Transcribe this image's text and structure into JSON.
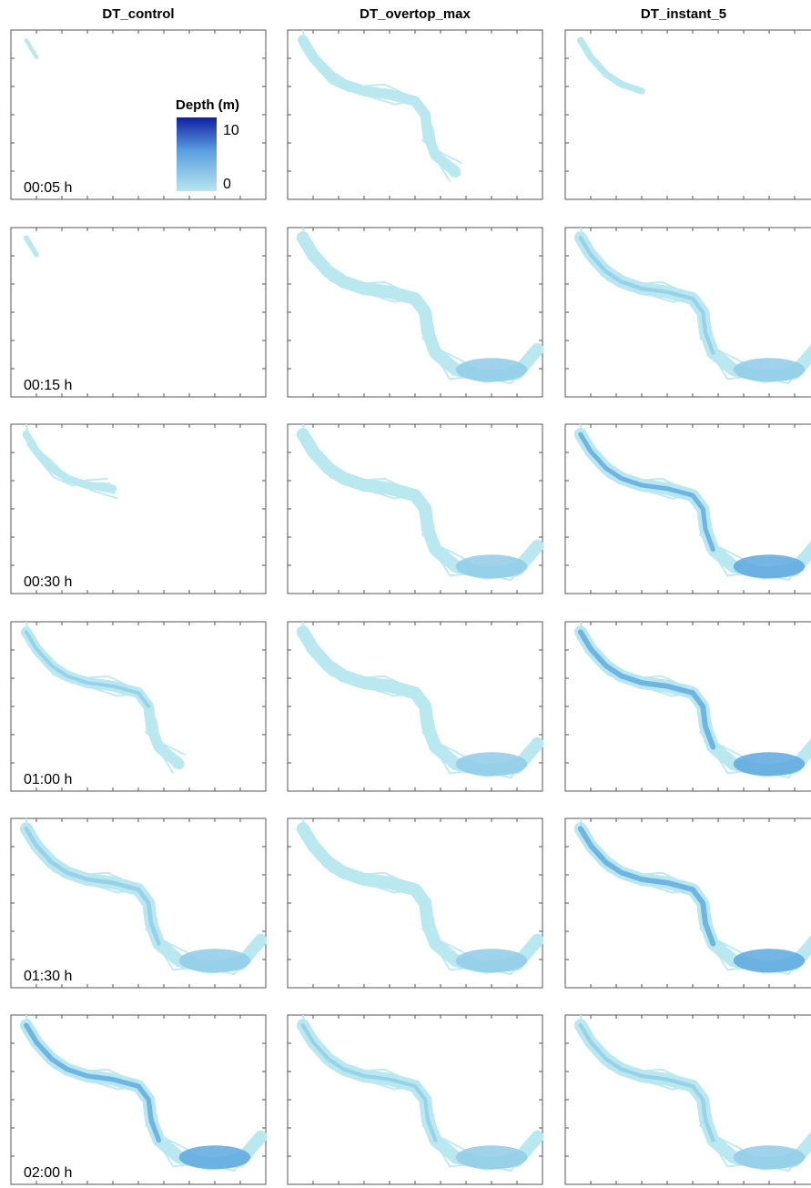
{
  "columns": [
    "DT_control",
    "DT_overtop_max",
    "DT_instant_5"
  ],
  "rows": [
    "00:05 h",
    "00:15 h",
    "00:30 h",
    "01:00 h",
    "01:30 h",
    "02:00 h"
  ],
  "colorbar": {
    "title": "Depth (m)",
    "max_label": "10",
    "min_label": "0",
    "range": [
      0,
      10
    ],
    "colors": [
      "#1020a0",
      "#5a9ee0",
      "#b6e6ee"
    ]
  },
  "colors": {
    "shallow": "#b9e8ef",
    "medium": "#8fcbe8",
    "deep": "#5da8e0",
    "deepest": "#3f86d0",
    "frame": "#555555"
  },
  "chart_data": {
    "type": "heatmap",
    "description_of_values": "flood depth maps",
    "columns": [
      "DT_control",
      "DT_overtop_max",
      "DT_instant_5"
    ],
    "time_steps": [
      "00:05 h",
      "00:15 h",
      "00:30 h",
      "01:00 h",
      "01:30 h",
      "02:00 h"
    ],
    "extent_fraction": [
      [
        0.02,
        0.16,
        0.45,
        0.78,
        1.0,
        1.0
      ],
      [
        0.75,
        1.0,
        1.0,
        1.0,
        1.0,
        1.0
      ],
      [
        0.35,
        1.0,
        1.0,
        1.0,
        1.0,
        1.0
      ]
    ],
    "depth_intensity": [
      [
        0.0,
        0.0,
        0.0,
        0.2,
        0.4,
        0.6
      ],
      [
        0.0,
        0.1,
        0.1,
        0.1,
        0.15,
        0.25
      ],
      [
        0.15,
        0.3,
        0.5,
        0.7,
        0.7,
        0.3
      ]
    ],
    "colorbar_range": [
      0,
      10
    ]
  }
}
